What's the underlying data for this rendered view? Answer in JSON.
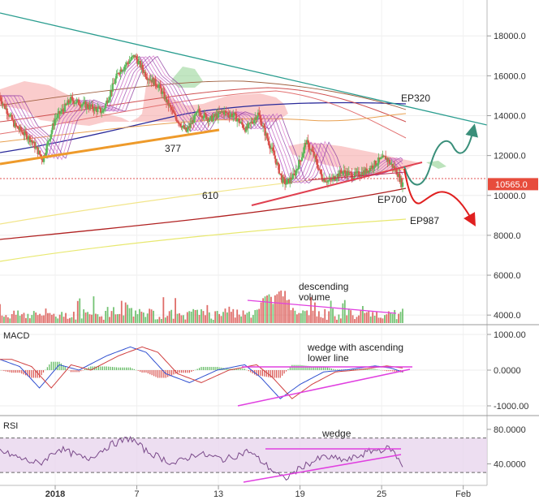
{
  "chart_data": [
    {
      "pane": "price",
      "type": "candlestick",
      "ylim": [
        3600,
        19800
      ],
      "yticks": [
        "18000.0",
        "16000.0",
        "14000.0",
        "12000.0",
        "10000.0",
        "8000.0",
        "6000.0",
        "4000.0"
      ],
      "ytick_values": [
        18000,
        16000,
        14000,
        12000,
        10000,
        8000,
        6000,
        4000
      ],
      "last_price": "10565.0",
      "last_price_value": 10565,
      "price_path": [
        [
          0,
          15000
        ],
        [
          4,
          13500
        ],
        [
          8,
          12800
        ],
        [
          11,
          11800
        ],
        [
          14,
          13800
        ],
        [
          18,
          14800
        ],
        [
          22,
          14500
        ],
        [
          26,
          14200
        ],
        [
          30,
          16200
        ],
        [
          34,
          17000
        ],
        [
          37,
          16000
        ],
        [
          40,
          15500
        ],
        [
          44,
          14000
        ],
        [
          47,
          13200
        ],
        [
          50,
          14200
        ],
        [
          53,
          13800
        ],
        [
          56,
          14200
        ],
        [
          59,
          14000
        ],
        [
          62,
          13300
        ],
        [
          65,
          14100
        ],
        [
          67,
          13000
        ],
        [
          69,
          12000
        ],
        [
          71,
          10800
        ],
        [
          72,
          10600
        ],
        [
          74,
          11000
        ],
        [
          76,
          12000
        ],
        [
          77,
          12700
        ],
        [
          79,
          12000
        ],
        [
          81,
          10900
        ],
        [
          83,
          10700
        ],
        [
          86,
          11200
        ],
        [
          89,
          11000
        ],
        [
          92,
          11200
        ],
        [
          95,
          11700
        ],
        [
          97,
          11900
        ],
        [
          99,
          11400
        ],
        [
          100,
          11100
        ],
        [
          101,
          10600
        ]
      ],
      "annotations": [
        {
          "text": "377",
          "x": 48,
          "y": 12100
        },
        {
          "text": "610",
          "x": 58,
          "y": 9700
        },
        {
          "text": "EP320",
          "x": 115,
          "y": 14400
        },
        {
          "text": "EP700",
          "x": 109,
          "y": 9550
        },
        {
          "text": "EP987",
          "x": 119,
          "y": 8500
        }
      ]
    },
    {
      "pane": "volume",
      "type": "bar",
      "annotation": [
        "descending",
        "volume"
      ]
    },
    {
      "pane": "macd",
      "title": "MACD",
      "type": "line",
      "ylim": [
        -1250,
        1250
      ],
      "yticks": [
        "1000.00",
        "0.0000",
        "-1000.00"
      ],
      "ytick_values": [
        1000,
        0,
        -1000
      ],
      "macd_path": [
        [
          0,
          300
        ],
        [
          5,
          100
        ],
        [
          10,
          -500
        ],
        [
          15,
          150
        ],
        [
          20,
          0
        ],
        [
          27,
          400
        ],
        [
          33,
          650
        ],
        [
          37,
          500
        ],
        [
          42,
          -100
        ],
        [
          48,
          -350
        ],
        [
          55,
          0
        ],
        [
          62,
          150
        ],
        [
          66,
          -200
        ],
        [
          71,
          -800
        ],
        [
          76,
          -400
        ],
        [
          82,
          -50
        ],
        [
          88,
          10
        ],
        [
          95,
          120
        ],
        [
          99,
          60
        ],
        [
          102,
          -50
        ]
      ],
      "annotation": [
        "wedge with ascending",
        "lower line"
      ]
    },
    {
      "pane": "rsi",
      "title": "RSI",
      "type": "line",
      "ylim": [
        16,
        95
      ],
      "yticks": [
        "80.0000",
        "40.0000"
      ],
      "ytick_values": [
        80,
        40
      ],
      "bands": [
        70,
        30
      ],
      "rsi_path": [
        [
          0,
          55
        ],
        [
          6,
          45
        ],
        [
          10,
          40
        ],
        [
          15,
          58
        ],
        [
          22,
          45
        ],
        [
          28,
          62
        ],
        [
          33,
          70
        ],
        [
          37,
          55
        ],
        [
          44,
          40
        ],
        [
          50,
          52
        ],
        [
          57,
          45
        ],
        [
          63,
          55
        ],
        [
          67,
          40
        ],
        [
          72,
          22
        ],
        [
          77,
          38
        ],
        [
          82,
          48
        ],
        [
          88,
          44
        ],
        [
          94,
          55
        ],
        [
          99,
          58
        ],
        [
          102,
          38
        ]
      ],
      "annotation": [
        "wedge"
      ]
    }
  ],
  "x_axis": {
    "ticks": [
      "2018",
      "7",
      "13",
      "19",
      "25",
      "Feb"
    ],
    "tick_values": [
      0,
      29,
      58,
      87,
      116,
      145
    ]
  },
  "colors": {
    "bull": "#5cb85c",
    "bear": "#d9534f",
    "last_price_bg": "#e74c3c",
    "trend_top": "#2a9d8f",
    "magenta": "#e040e0",
    "rsi_band": "#e9d6ee",
    "arrow_up": "#3a8f7a",
    "arrow_down": "#e02020"
  }
}
